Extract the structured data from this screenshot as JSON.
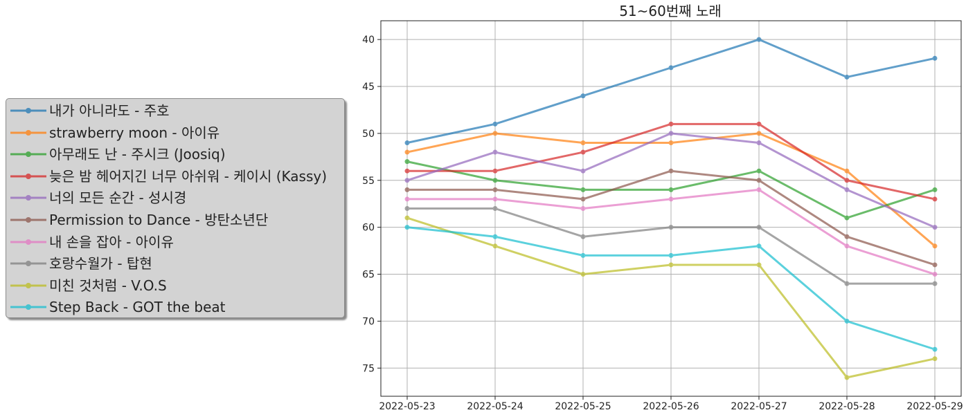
{
  "chart_data": {
    "type": "line",
    "title": "51~60번째 노래",
    "xlabel": "",
    "ylabel": "",
    "x": [
      "2022-05-23",
      "2022-05-24",
      "2022-05-25",
      "2022-05-26",
      "2022-05-27",
      "2022-05-28",
      "2022-05-29"
    ],
    "ylim": [
      78,
      38
    ],
    "y_inverted": true,
    "y_ticks": [
      40,
      45,
      50,
      55,
      60,
      65,
      70,
      75
    ],
    "grid": true,
    "legend_position": "left outside",
    "series": [
      {
        "name": "내가 아니라도 - 주호",
        "color": "#1f77b4",
        "values": [
          51,
          49,
          46,
          43,
          40,
          44,
          42
        ]
      },
      {
        "name": "strawberry moon - 아이유",
        "color": "#ff7f0e",
        "values": [
          52,
          50,
          51,
          51,
          50,
          54,
          62
        ]
      },
      {
        "name": "아무래도 난 - 주시크 (Joosiq)",
        "color": "#2ca02c",
        "values": [
          53,
          55,
          56,
          56,
          54,
          59,
          56
        ]
      },
      {
        "name": "늦은 밤 헤어지긴 너무 아쉬워 - 케이시 (Kassy)",
        "color": "#d62728",
        "values": [
          54,
          54,
          52,
          49,
          49,
          55,
          57
        ]
      },
      {
        "name": "너의 모든 순간 - 성시경",
        "color": "#9467bd",
        "values": [
          55,
          52,
          54,
          50,
          51,
          56,
          60
        ]
      },
      {
        "name": "Permission to Dance - 방탄소년단",
        "color": "#8c564b",
        "values": [
          56,
          56,
          57,
          54,
          55,
          61,
          64
        ]
      },
      {
        "name": "내 손을 잡아 - 아이유",
        "color": "#e377c2",
        "values": [
          57,
          57,
          58,
          57,
          56,
          62,
          65
        ]
      },
      {
        "name": "호랑수월가 - 탑현",
        "color": "#7f7f7f",
        "values": [
          58,
          58,
          61,
          60,
          60,
          66,
          66
        ]
      },
      {
        "name": "미친 것처럼 - V.O.S",
        "color": "#bcbd22",
        "values": [
          59,
          62,
          65,
          64,
          64,
          76,
          74
        ]
      },
      {
        "name": "Step Back - GOT the beat",
        "color": "#17becf",
        "values": [
          60,
          61,
          63,
          63,
          62,
          70,
          73
        ]
      }
    ]
  }
}
